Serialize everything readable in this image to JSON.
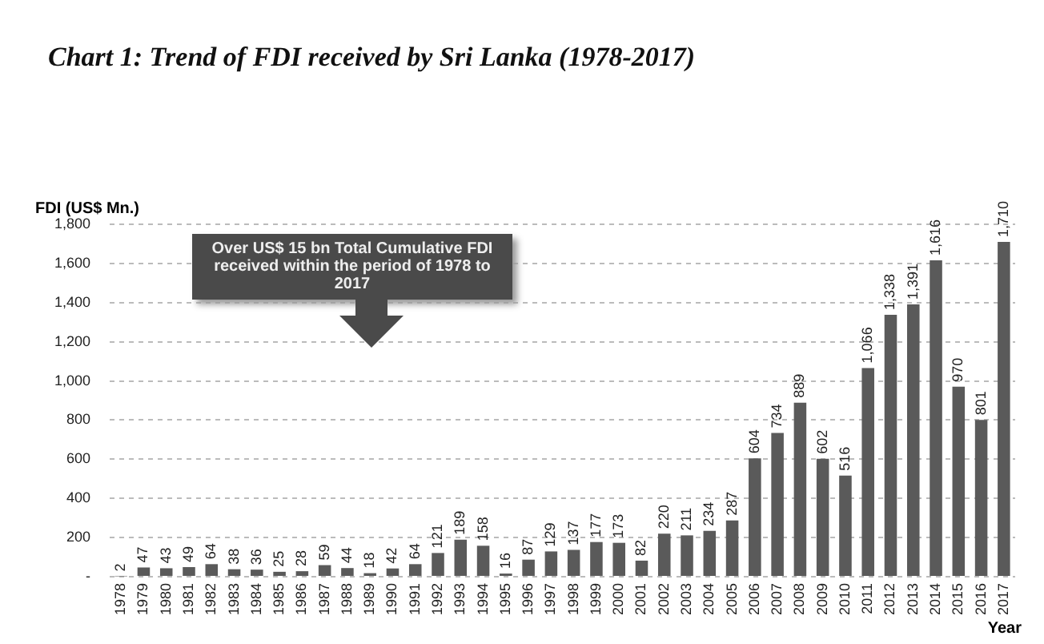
{
  "chart_data": {
    "type": "bar",
    "title": "Chart 1: Trend of FDI received by Sri Lanka (1978-2017)",
    "ylabel": "FDI (US$ Mn.)",
    "xlabel": "Year",
    "categories": [
      "1978",
      "1979",
      "1980",
      "1981",
      "1982",
      "1983",
      "1984",
      "1985",
      "1986",
      "1987",
      "1988",
      "1989",
      "1990",
      "1991",
      "1992",
      "1993",
      "1994",
      "1995",
      "1996",
      "1997",
      "1998",
      "1999",
      "2000",
      "2001",
      "2002",
      "2003",
      "2004",
      "2005",
      "2006",
      "2007",
      "2008",
      "2009",
      "2010",
      "2011",
      "2012",
      "2013",
      "2014",
      "2015",
      "2016",
      "2017"
    ],
    "values": [
      2,
      47,
      43,
      49,
      64,
      38,
      36,
      25,
      28,
      59,
      44,
      18,
      42,
      64,
      121,
      189,
      158,
      16,
      87,
      129,
      137,
      177,
      173,
      82,
      220,
      211,
      234,
      287,
      604,
      734,
      889,
      602,
      516,
      1066,
      1338,
      1391,
      1616,
      970,
      801,
      1710
    ],
    "value_labels": [
      "2",
      "47",
      "43",
      "49",
      "64",
      "38",
      "36",
      "25",
      "28",
      "59",
      "44",
      "18",
      "42",
      "64",
      "121",
      "189",
      "158",
      "16",
      "87",
      "129",
      "137",
      "177",
      "173",
      "82",
      "220",
      "211",
      "234",
      "287",
      "604",
      "734",
      "889",
      "602",
      "516",
      "1,066",
      "1,338",
      "1,391",
      "1,616",
      "970",
      "801",
      "1,710"
    ],
    "color": "#5a5a5a",
    "ylim": [
      0,
      1800
    ],
    "yticks": [
      {
        "value": 0,
        "label": "-"
      },
      {
        "value": 200,
        "label": "200"
      },
      {
        "value": 400,
        "label": "400"
      },
      {
        "value": 600,
        "label": "600"
      },
      {
        "value": 800,
        "label": "800"
      },
      {
        "value": 1000,
        "label": "1,000"
      },
      {
        "value": 1200,
        "label": "1,200"
      },
      {
        "value": 1400,
        "label": "1,400"
      },
      {
        "value": 1600,
        "label": "1,600"
      },
      {
        "value": 1800,
        "label": "1,800"
      }
    ],
    "grid": "y",
    "legend": false,
    "annotations": [
      "Over US$ 15 bn Total Cumulative FDI received within the period of 1978 to 2017"
    ]
  }
}
